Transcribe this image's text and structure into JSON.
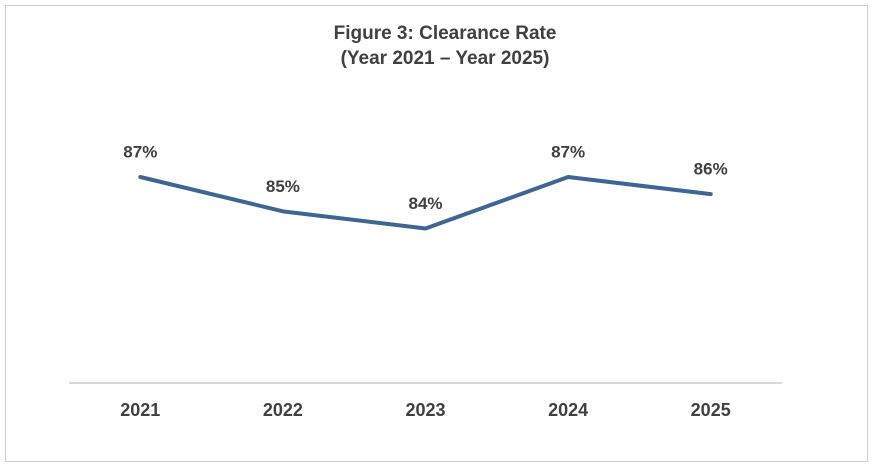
{
  "chart_data": {
    "type": "line",
    "title": "Figure 3: Clearance Rate",
    "subtitle": "(Year 2021 – Year 2025)",
    "categories": [
      "2021",
      "2022",
      "2023",
      "2024",
      "2025"
    ],
    "values": [
      87,
      85,
      84,
      87,
      86
    ],
    "value_labels": [
      "87%",
      "85%",
      "84%",
      "87%",
      "86%"
    ],
    "color": "#3d6694",
    "ylim": [
      75,
      90
    ],
    "grid": false
  }
}
